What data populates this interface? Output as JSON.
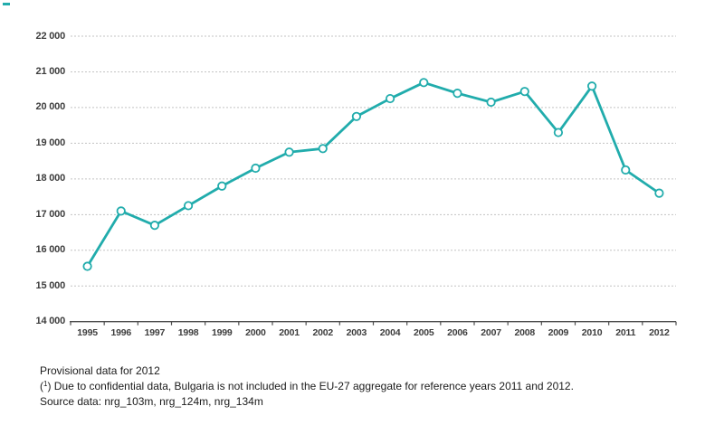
{
  "chart_data": {
    "type": "line",
    "categories": [
      "1995",
      "1996",
      "1997",
      "1998",
      "1999",
      "2000",
      "2001",
      "2002",
      "2003",
      "2004",
      "2005",
      "2006",
      "2007",
      "2008",
      "2009",
      "2010",
      "2011",
      "2012"
    ],
    "values": [
      15550,
      17100,
      16700,
      17250,
      17800,
      18300,
      18750,
      18850,
      19750,
      20250,
      20700,
      20400,
      20150,
      20450,
      19300,
      20600,
      18250,
      17600
    ],
    "title": "",
    "xlabel": "",
    "ylabel": "",
    "ylim": [
      14000,
      22000
    ],
    "y_tick_step": 1000,
    "y_tick_labels": [
      "14 000",
      "15 000",
      "16 000",
      "17 000",
      "18 000",
      "19 000",
      "20 000",
      "21 000",
      "22 000"
    ],
    "grid": "horizontal-dashed",
    "legend": "none",
    "colors": {
      "line": "#21acac",
      "marker_fill": "#ffffff",
      "grid": "#c3c3c3",
      "axis": "#4d4d4d",
      "tick_text": "#3d3d3d"
    }
  },
  "notes": {
    "provisional": "Provisional data for 2012",
    "footnote_prefix": "(",
    "footnote_sup": "1",
    "footnote_rest": ") Due to confidential data, Bulgaria is not included in the EU-27 aggregate for reference years 2011 and 2012.",
    "source": "Source data: nrg_103m, nrg_124m, nrg_134m"
  }
}
